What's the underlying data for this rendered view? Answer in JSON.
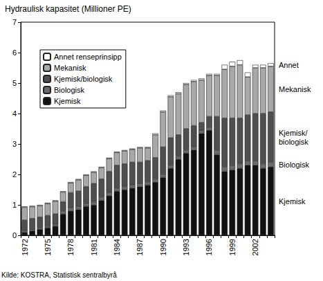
{
  "chart_data": {
    "type": "bar",
    "title": "Hydraulisk kapasitet (Millioner PE)",
    "source": "Kilde: KOSTRA, Statistisk sentralbyrå",
    "stacked": true,
    "grid": false,
    "legend": "upper left",
    "categories": [
      "1972",
      null,
      null,
      "1975",
      null,
      null,
      "1978",
      null,
      null,
      "1981",
      null,
      null,
      "1984",
      null,
      null,
      "1987",
      null,
      null,
      "1990",
      null,
      null,
      "1993",
      null,
      null,
      "1996",
      null,
      null,
      "1999",
      null,
      null,
      "2002",
      null,
      null
    ],
    "ylim": [
      0,
      7
    ],
    "yticks": [
      0,
      1,
      2,
      3,
      4,
      5,
      6,
      7
    ],
    "series": [
      {
        "name": "Kjemisk",
        "color": "#111111",
        "values": [
          0.1,
          0.15,
          0.2,
          0.25,
          0.3,
          0.7,
          0.8,
          0.85,
          0.95,
          1.0,
          1.15,
          1.3,
          1.45,
          1.5,
          1.55,
          1.6,
          1.65,
          1.75,
          1.9,
          2.2,
          2.5,
          2.7,
          2.8,
          3.35,
          3.45,
          2.65,
          2.1,
          2.15,
          2.2,
          2.3,
          2.3,
          2.2,
          2.25
        ]
      },
      {
        "name": "Biologisk",
        "color": "#6b6b6b",
        "values": [
          0.05,
          0.05,
          0.05,
          0.05,
          0.05,
          0.1,
          0.1,
          0.1,
          0.1,
          0.1,
          0.1,
          0.1,
          0.1,
          0.1,
          0.1,
          0.1,
          0.1,
          0.1,
          0.1,
          0.1,
          0.1,
          0.1,
          0.1,
          0.1,
          0.1,
          0.15,
          0.15,
          0.15,
          0.15,
          0.15,
          0.15,
          0.15,
          0.15
        ]
      },
      {
        "name": "Kjemisk/biologisk",
        "color": "#4f4f4f",
        "values": [
          0.35,
          0.35,
          0.35,
          0.35,
          0.35,
          0.3,
          0.5,
          0.5,
          0.55,
          0.6,
          0.6,
          0.7,
          0.75,
          0.75,
          0.75,
          0.7,
          0.7,
          0.7,
          0.9,
          0.9,
          0.7,
          0.7,
          0.7,
          0.25,
          0.35,
          1.1,
          1.6,
          1.55,
          1.5,
          1.5,
          1.55,
          1.65,
          1.65
        ]
      },
      {
        "name": "Mekanisk",
        "color": "#a8a8a8",
        "values": [
          0.42,
          0.39,
          0.37,
          0.39,
          0.42,
          0.32,
          0.32,
          0.37,
          0.37,
          0.37,
          0.37,
          0.42,
          0.42,
          0.42,
          0.42,
          0.47,
          0.42,
          0.75,
          1.15,
          1.35,
          1.35,
          1.45,
          1.45,
          1.4,
          1.35,
          1.35,
          1.6,
          1.7,
          1.75,
          1.25,
          1.5,
          1.5,
          1.5
        ]
      },
      {
        "name": "Annet renseprinsipp",
        "color": "#ffffff",
        "values": [
          0.03,
          0.03,
          0.03,
          0.03,
          0.03,
          0.03,
          0.03,
          0.03,
          0.03,
          0.03,
          0.03,
          0.03,
          0.03,
          0.03,
          0.03,
          0.03,
          0.03,
          0.05,
          0.05,
          0.05,
          0.05,
          0.05,
          0.05,
          0.05,
          0.05,
          0.05,
          0.15,
          0.15,
          0.15,
          0.15,
          0.1,
          0.1,
          0.1
        ]
      }
    ],
    "annotations": [
      {
        "text": "Annet",
        "series": "Annet renseprinsipp"
      },
      {
        "text": "Mekanisk",
        "series": "Mekanisk"
      },
      {
        "text": "Kjemisk/\nbiologisk",
        "series": "Kjemisk/biologisk"
      },
      {
        "text": "Biologisk",
        "series": "Biologisk"
      },
      {
        "text": "Kjemisk",
        "series": "Kjemisk"
      }
    ]
  }
}
